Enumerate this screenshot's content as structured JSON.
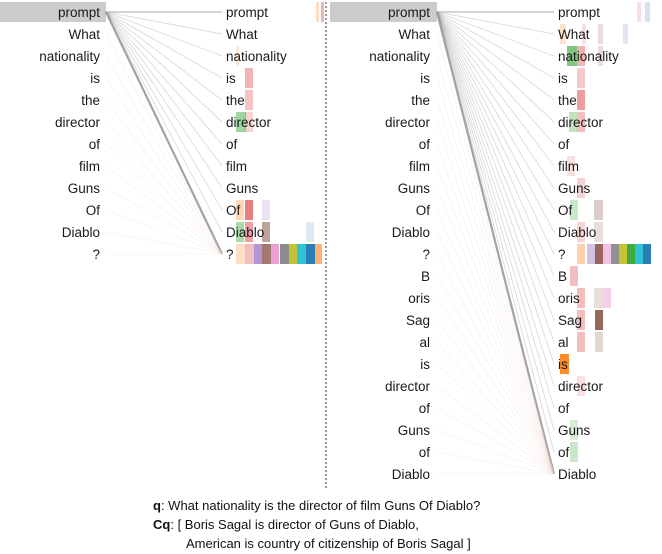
{
  "colors": {
    "highlight": "#cccccc",
    "line": "#999999",
    "separator": "#333333",
    "palette": [
      "#1f77b4",
      "#ff7f0e",
      "#2ca02c",
      "#d62728",
      "#9467bd",
      "#8c564b",
      "#e377c2",
      "#7f7f7f",
      "#bcbd22",
      "#17becf"
    ]
  },
  "left_panel": {
    "source_tokens": [
      "prompt",
      "What",
      "nationality",
      "is",
      "the",
      "director",
      "of",
      "film",
      "Guns",
      "Of",
      "Diablo",
      "?"
    ],
    "target_tokens": [
      "prompt",
      "What",
      "nationality",
      "is",
      "the",
      "director",
      "of",
      "film",
      "Guns",
      "Of",
      "Diablo",
      "?"
    ],
    "focus_source_index": 0
  },
  "right_panel": {
    "source_tokens": [
      "prompt",
      "What",
      "nationality",
      "is",
      "the",
      "director",
      "of",
      "film",
      "Guns",
      "Of",
      "Diablo",
      "?",
      "B",
      "oris",
      "Sag",
      "al",
      "is",
      "director",
      "of",
      "Guns",
      "of",
      "Diablo"
    ],
    "target_tokens": [
      "prompt",
      "What",
      "nationality",
      "is",
      "the",
      "director",
      "of",
      "film",
      "Guns",
      "Of",
      "Diablo",
      "?",
      "B",
      "oris",
      "Sag",
      "al",
      "is",
      "director",
      "of",
      "Guns",
      "of",
      "Diablo"
    ],
    "focus_source_index": 0
  },
  "caption": {
    "q_label": "q",
    "q_text": ": What nationality is the director of film Guns Of Diablo?",
    "cq_label": "Cq",
    "cq_line1": ": [ Boris Sagal is director of Guns of Diablo,",
    "cq_line2": "American is country of citizenship of Boris Sagal ]"
  }
}
